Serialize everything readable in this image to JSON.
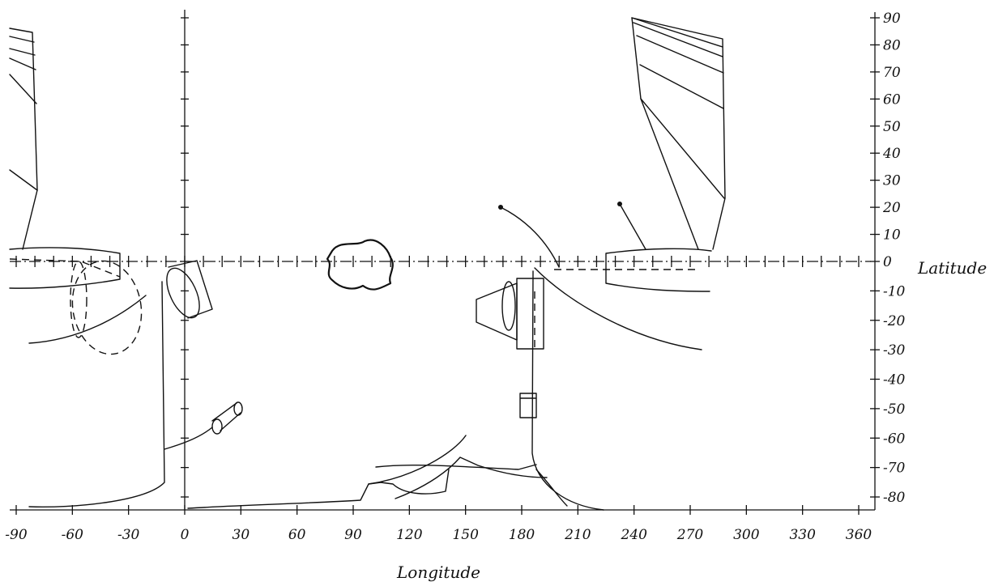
{
  "axes": {
    "x_title": "Longitude",
    "y_title": "Latitude",
    "x_range": [
      -90,
      360
    ],
    "y_range": [
      -85,
      90
    ],
    "x_ticks": [
      {
        "value": -90,
        "label": "-90"
      },
      {
        "value": -60,
        "label": "-60"
      },
      {
        "value": -30,
        "label": "-30"
      },
      {
        "value": 0,
        "label": "0"
      },
      {
        "value": 30,
        "label": "30"
      },
      {
        "value": 60,
        "label": "60"
      },
      {
        "value": 90,
        "label": "90"
      },
      {
        "value": 120,
        "label": "120"
      },
      {
        "value": 150,
        "label": "150"
      },
      {
        "value": 180,
        "label": "180"
      },
      {
        "value": 210,
        "label": "210"
      },
      {
        "value": 240,
        "label": "240"
      },
      {
        "value": 270,
        "label": "270"
      },
      {
        "value": 300,
        "label": "300"
      },
      {
        "value": 330,
        "label": "330"
      },
      {
        "value": 360,
        "label": "360"
      }
    ],
    "y_ticks": [
      {
        "value": 90,
        "label": "90"
      },
      {
        "value": 80,
        "label": "80"
      },
      {
        "value": 70,
        "label": "70"
      },
      {
        "value": 60,
        "label": "60"
      },
      {
        "value": 50,
        "label": "50"
      },
      {
        "value": 40,
        "label": "40"
      },
      {
        "value": 30,
        "label": "30"
      },
      {
        "value": 20,
        "label": "20"
      },
      {
        "value": 10,
        "label": "10"
      },
      {
        "value": 0,
        "label": "0"
      },
      {
        "value": -10,
        "label": "-10"
      },
      {
        "value": -20,
        "label": "-20"
      },
      {
        "value": -30,
        "label": "-30"
      },
      {
        "value": -40,
        "label": "-40"
      },
      {
        "value": -50,
        "label": "-50"
      },
      {
        "value": -60,
        "label": "-60"
      },
      {
        "value": -70,
        "label": "-70"
      },
      {
        "value": -80,
        "label": "-80"
      }
    ]
  },
  "style": {
    "ink_color": "#111111",
    "paper_color": "#ffffff"
  }
}
